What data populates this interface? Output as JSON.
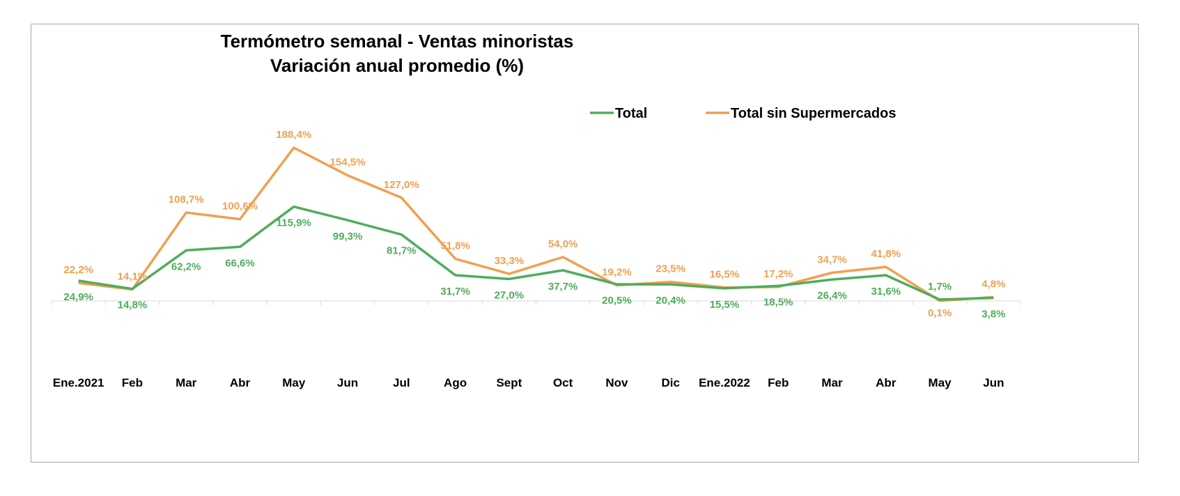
{
  "chart_data": {
    "type": "line",
    "title": "Termómetro semanal - Ventas minoristas",
    "subtitle": "Variación anual promedio (%)",
    "categories": [
      "Ene.2021",
      "Feb",
      "Mar",
      "Abr",
      "May",
      "Jun",
      "Jul",
      "Ago",
      "Sept",
      "Oct",
      "Nov",
      "Dic",
      "Ene.2022",
      "Feb",
      "Mar",
      "Abr",
      "May",
      "Jun"
    ],
    "series": [
      {
        "name": "Total",
        "color": "#4ead5b",
        "values": [
          24.9,
          14.8,
          62.2,
          66.6,
          115.9,
          99.3,
          81.7,
          31.7,
          27.0,
          37.7,
          20.5,
          20.4,
          15.5,
          18.5,
          26.4,
          31.6,
          1.7,
          3.8
        ],
        "labels": [
          "24,9%",
          "14,8%",
          "62,2%",
          "66,6%",
          "115,9%",
          "99,3%",
          "81,7%",
          "31,7%",
          "27,0%",
          "37,7%",
          "20,5%",
          "20,4%",
          "15,5%",
          "18,5%",
          "26,4%",
          "31,6%",
          "1,7%",
          "3,8%"
        ]
      },
      {
        "name": "Total sin Supermercados",
        "color": "#f0a050",
        "values": [
          22.2,
          14.1,
          108.7,
          100.6,
          188.4,
          154.5,
          127.0,
          51.8,
          33.3,
          54.0,
          19.2,
          23.5,
          16.5,
          17.2,
          34.7,
          41.8,
          0.1,
          4.8
        ],
        "labels": [
          "22,2%",
          "14,1%",
          "108,7%",
          "100,6%",
          "188,4%",
          "154,5%",
          "127,0%",
          "51,8%",
          "33,3%",
          "54,0%",
          "19,2%",
          "23,5%",
          "16,5%",
          "17,2%",
          "34,7%",
          "41,8%",
          "0,1%",
          "4,8%"
        ]
      }
    ],
    "legend": "top-right",
    "grid": false,
    "ylim": [
      -100,
      210
    ]
  }
}
